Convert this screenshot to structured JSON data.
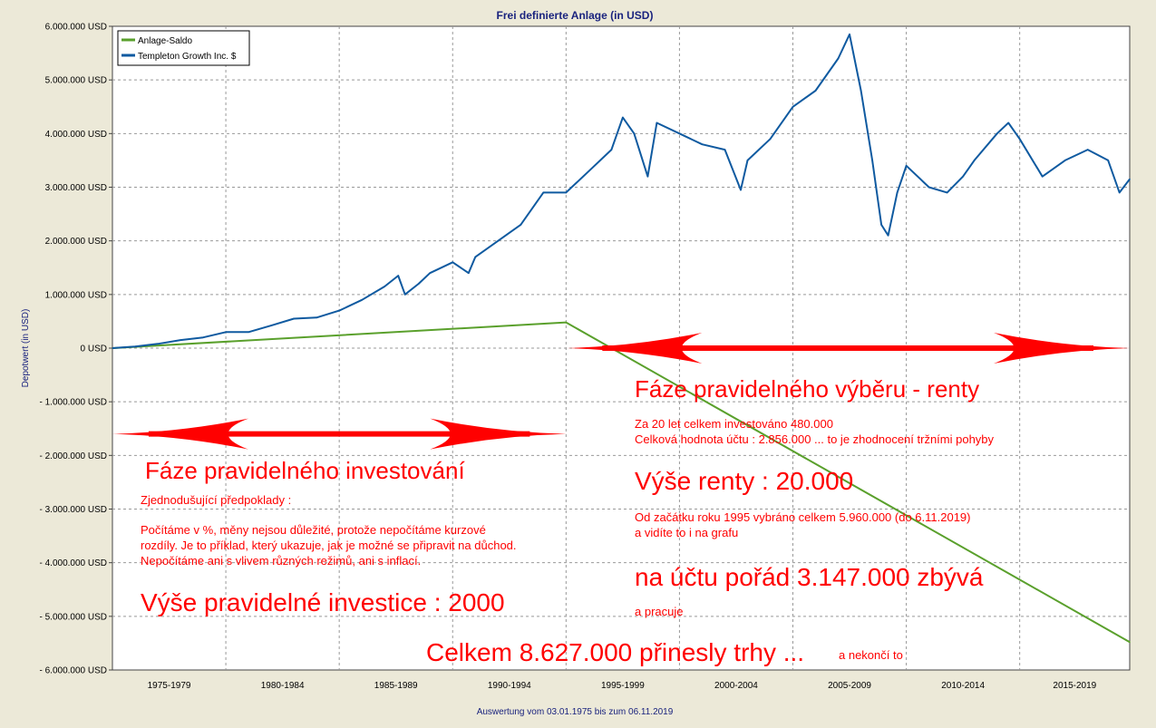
{
  "chart_data": {
    "type": "line",
    "title": "Frei definierte Anlage (in USD)",
    "ylabel": "Depotwert (in USD)",
    "footer": "Auswertung vom 03.01.1975 bis zum 06.11.2019",
    "xlim": [
      1975.0,
      2019.85
    ],
    "ylim": [
      -6000000,
      6000000
    ],
    "grid": true,
    "legend_position": "top-left",
    "y_ticks": [
      "6.000.000 USD",
      "5.000.000 USD",
      "4.000.000 USD",
      "3.000.000 USD",
      "2.000.000 USD",
      "1.000.000 USD",
      "0 USD",
      "- 1.000.000 USD",
      "- 2.000.000 USD",
      "- 3.000.000 USD",
      "- 4.000.000 USD",
      "- 5.000.000 USD",
      "- 6.000.000 USD"
    ],
    "x_tick_labels": [
      "1975-1979",
      "1980-1984",
      "1985-1989",
      "1990-1994",
      "1995-1999",
      "2000-2004",
      "2005-2009",
      "2010-2014",
      "2015-2019"
    ],
    "series": [
      {
        "name": "Anlage-Saldo",
        "color": "#5aa02c",
        "x": [
          1975.0,
          1995.0,
          2019.85
        ],
        "y": [
          0,
          480000,
          -5480000
        ]
      },
      {
        "name": "Templeton Growth Inc. $",
        "color": "#0f5aa0",
        "x": [
          1975.0,
          1976.0,
          1977.0,
          1978.0,
          1979.0,
          1980.0,
          1981.0,
          1982.0,
          1983.0,
          1984.0,
          1985.0,
          1986.0,
          1987.0,
          1987.6,
          1987.9,
          1988.5,
          1989.0,
          1990.0,
          1990.7,
          1991.0,
          1992.0,
          1993.0,
          1994.0,
          1995.0,
          1996.0,
          1997.0,
          1997.5,
          1998.0,
          1998.6,
          1999.0,
          2000.0,
          2001.0,
          2002.0,
          2002.7,
          2003.0,
          2004.0,
          2005.0,
          2006.0,
          2007.0,
          2007.5,
          2008.0,
          2008.5,
          2008.9,
          2009.2,
          2009.6,
          2010.0,
          2011.0,
          2011.8,
          2012.5,
          2013.0,
          2014.0,
          2014.5,
          2015.0,
          2016.0,
          2017.0,
          2018.0,
          2018.9,
          2019.4,
          2019.85
        ],
        "y": [
          0,
          30000,
          80000,
          150000,
          200000,
          300000,
          300000,
          420000,
          550000,
          570000,
          700000,
          900000,
          1150000,
          1350000,
          1000000,
          1200000,
          1400000,
          1600000,
          1400000,
          1700000,
          2000000,
          2300000,
          2900000,
          2900000,
          3300000,
          3700000,
          4300000,
          4000000,
          3200000,
          4200000,
          4000000,
          3800000,
          3700000,
          2950000,
          3500000,
          3900000,
          4500000,
          4800000,
          5400000,
          5850000,
          4800000,
          3500000,
          2300000,
          2100000,
          2900000,
          3400000,
          3000000,
          2900000,
          3200000,
          3500000,
          4000000,
          4200000,
          3900000,
          3200000,
          3500000,
          3700000,
          3500000,
          2900000,
          3150000
        ]
      }
    ]
  },
  "annotations": {
    "invest_heading": "Fáze pravidelného investování",
    "invest_assumptions_title": "Zjednodušující předpoklady :",
    "invest_line1": "Počítáme v %, měny nejsou důležité, protože nepočítáme kurzové",
    "invest_line2": "rozdíly. Je to příklad, který ukazuje, jak je možné se připravit na důchod.",
    "invest_line3": "Nepočítáme ani s vlivem různých režimů, ani s inflací.",
    "invest_amount": "Výše pravidelné investice : 2000",
    "withdraw_heading": "Fáze pravidelného výběru - renty",
    "withdraw_line1": "Za 20 let celkem investováno 480.000",
    "withdraw_line2": "Celková hodnota účtu : 2.856.000 ... to je zhodnocení tržními pohyby",
    "rent_amount": "Výše renty : 20.000",
    "withdrawn_line1": "Od začátku roku 1995 vybráno celkem 5.960.000 (do 6.11.2019)",
    "withdrawn_line2": "a vidíte to i na grafu",
    "remaining": "na účtu pořád 3.147.000 zbývá",
    "works": "a pracuje",
    "total": "Celkem 8.627.000 přinesly trhy ...",
    "total_suffix": "a nekončí to"
  }
}
